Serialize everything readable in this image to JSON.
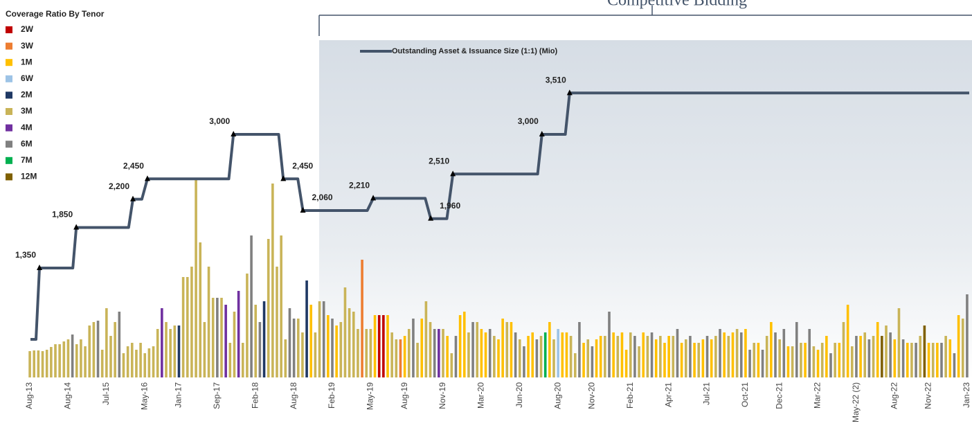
{
  "chart_data": {
    "type": "bar",
    "annotation": "Competitive Bidding",
    "legend_title": "Coverage Ratio By Tenor",
    "legend": [
      {
        "name": "2W",
        "color": "#c00000"
      },
      {
        "name": "3W",
        "color": "#ed7d31"
      },
      {
        "name": "1M",
        "color": "#ffc000"
      },
      {
        "name": "6W",
        "color": "#9dc3e6"
      },
      {
        "name": "2M",
        "color": "#1f3864"
      },
      {
        "name": "3M",
        "color": "#c9b458"
      },
      {
        "name": "4M",
        "color": "#7030a0"
      },
      {
        "name": "6M",
        "color": "#808080"
      },
      {
        "name": "7M",
        "color": "#00b050"
      },
      {
        "name": "12M",
        "color": "#7f6000"
      }
    ],
    "xlim": [
      -0.5,
      220.5
    ],
    "xticks": [
      {
        "value": 0,
        "label": "Aug-13"
      },
      {
        "value": 9,
        "label": "Aug-14"
      },
      {
        "value": 18,
        "label": "Jul-15"
      },
      {
        "value": 27,
        "label": "May-16"
      },
      {
        "value": 35,
        "label": "Jan-17"
      },
      {
        "value": 44,
        "label": "Sep-17"
      },
      {
        "value": 53,
        "label": "Feb-18"
      },
      {
        "value": 62,
        "label": "Aug-18"
      },
      {
        "value": 71,
        "label": "Feb-19"
      },
      {
        "value": 80,
        "label": "May-19"
      },
      {
        "value": 88,
        "label": "Aug-19"
      },
      {
        "value": 97,
        "label": "Nov-19"
      },
      {
        "value": 106,
        "label": "Mar-20"
      },
      {
        "value": 115,
        "label": "Jun-20"
      },
      {
        "value": 124,
        "label": "Aug-20"
      },
      {
        "value": 132,
        "label": "Nov-20"
      },
      {
        "value": 141,
        "label": "Feb-21"
      },
      {
        "value": 150,
        "label": "Apr-21"
      },
      {
        "value": 159,
        "label": "Jul-21"
      },
      {
        "value": 168,
        "label": "Oct-21"
      },
      {
        "value": 176,
        "label": "Dec-21"
      },
      {
        "value": 185,
        "label": "Mar-22"
      },
      {
        "value": 194,
        "label": "May-22 (2)"
      },
      {
        "value": 203,
        "label": "Aug-22"
      },
      {
        "value": 211,
        "label": "Nov-22"
      },
      {
        "value": 220,
        "label": "Jan-23"
      }
    ],
    "ylim": [
      0,
      6
    ],
    "tenors": [
      "3M",
      "3M",
      "3M",
      "3M",
      "3M",
      "3M",
      "3M",
      "3M",
      "3M",
      "3M",
      "6M",
      "3M",
      "3M",
      "3M",
      "3M",
      "3M",
      "6M",
      "3M",
      "3M",
      "3M",
      "3M",
      "6M",
      "3M",
      "3M",
      "3M",
      "3M",
      "3M",
      "3M",
      "3M",
      "3M",
      "3M",
      "4M",
      "3M",
      "3M",
      "3M",
      "2M",
      "3M",
      "3M",
      "3M",
      "3M",
      "3M",
      "3M",
      "3M",
      "3M",
      "6M",
      "3M",
      "4M",
      "3M",
      "3M",
      "4M",
      "3M",
      "3M",
      "6M",
      "3M",
      "6M",
      "2M",
      "3M",
      "3M",
      "3M",
      "3M",
      "3M",
      "6M",
      "6M",
      "3M",
      "3M",
      "2M",
      "1M",
      "3M",
      "3M",
      "6M",
      "1M",
      "6M",
      "1M",
      "3M",
      "3M",
      "3M",
      "3M",
      "3M",
      "3W",
      "3M",
      "3M",
      "1M",
      "2W",
      "2W",
      "1M",
      "3M",
      "3M",
      "3W",
      "1M",
      "3M",
      "6M",
      "3M",
      "1M",
      "3M",
      "3M",
      "6M",
      "4M",
      "3M",
      "1M",
      "3M",
      "6M",
      "1M",
      "1M",
      "3M",
      "6M",
      "3M",
      "1M",
      "1M",
      "6M",
      "3M",
      "1M",
      "1M",
      "3M",
      "1M",
      "6M",
      "3M",
      "6M",
      "1M",
      "1M",
      "6M",
      "3M",
      "7M",
      "1M",
      "3M",
      "6W",
      "1M",
      "1M",
      "3M",
      "3M",
      "6M",
      "1M",
      "3M",
      "6M",
      "1M",
      "1M",
      "3M",
      "6M",
      "1M",
      "3M",
      "1M",
      "1M",
      "3M",
      "6M",
      "3M",
      "1M",
      "3M",
      "6M",
      "1M",
      "3M",
      "1M",
      "1M",
      "3M",
      "6M",
      "1M",
      "3M",
      "6M",
      "1M",
      "3M",
      "1M",
      "6M",
      "1M",
      "3M",
      "6M",
      "1M",
      "3M",
      "1M",
      "3M",
      "6M",
      "1M",
      "6M",
      "3M",
      "1M",
      "6M",
      "3M",
      "1M",
      "6M",
      "3M",
      "6M",
      "1M",
      "3M",
      "6M",
      "3M",
      "1M",
      "6M",
      "3M",
      "1M",
      "3M",
      "1M",
      "6M",
      "3M",
      "1M",
      "3M",
      "1M",
      "3M",
      "6M",
      "1M",
      "3M",
      "6M",
      "3M",
      "1M",
      "12M",
      "3M",
      "6M",
      "1M",
      "3M",
      "6M",
      "1M",
      "3M",
      "6M",
      "3M",
      "12M",
      "1M",
      "3M",
      "1M",
      "6M",
      "3M",
      "1M",
      "6M",
      "1M",
      "3M",
      "6M"
    ],
    "values": [
      0.76,
      0.78,
      0.78,
      0.76,
      0.8,
      0.88,
      0.96,
      0.96,
      1.04,
      1.1,
      1.24,
      0.96,
      1.1,
      0.9,
      1.5,
      1.6,
      1.64,
      0.8,
      2.0,
      1.2,
      1.6,
      1.9,
      0.7,
      0.9,
      1.0,
      0.8,
      1.0,
      0.7,
      0.84,
      0.9,
      1.4,
      2.0,
      1.6,
      1.4,
      1.5,
      1.5,
      2.9,
      2.9,
      3.2,
      5.7,
      3.9,
      1.6,
      3.2,
      2.3,
      2.3,
      2.3,
      2.1,
      1.0,
      1.9,
      2.5,
      1.0,
      3.0,
      4.1,
      2.1,
      1.6,
      2.2,
      4.0,
      5.6,
      3.2,
      4.1,
      1.1,
      2.0,
      1.7,
      1.7,
      1.3,
      2.8,
      2.1,
      1.3,
      2.2,
      2.2,
      1.8,
      1.7,
      1.5,
      1.6,
      2.6,
      2.0,
      1.9,
      1.4,
      3.4,
      1.4,
      1.4,
      1.8,
      1.8,
      1.8,
      1.8,
      1.3,
      1.1,
      1.1,
      1.2,
      1.4,
      1.7,
      1.0,
      1.7,
      2.2,
      1.6,
      1.4,
      1.4,
      1.4,
      1.2,
      0.7,
      1.2,
      1.8,
      1.9,
      1.3,
      1.6,
      1.6,
      1.4,
      1.3,
      1.4,
      1.2,
      1.1,
      1.7,
      1.6,
      1.6,
      1.3,
      1.1,
      0.9,
      1.2,
      1.3,
      1.1,
      1.2,
      1.3,
      1.6,
      1.1,
      1.4,
      1.3,
      1.3,
      1.2,
      0.7,
      1.6,
      1.0,
      1.1,
      0.9,
      1.1,
      1.2,
      1.2,
      1.9,
      1.3,
      1.2,
      1.3,
      0.8,
      1.3,
      1.2,
      0.9,
      1.3,
      1.2,
      1.3,
      1.1,
      1.2,
      1.0,
      1.2,
      1.2,
      1.4,
      1.0,
      1.1,
      1.2,
      1.0,
      1.0,
      1.1,
      1.2,
      1.1,
      1.2,
      1.4,
      1.3,
      1.2,
      1.3,
      1.4,
      1.3,
      1.4,
      0.8,
      1.0,
      1.0,
      0.8,
      1.2,
      1.6,
      1.3,
      1.1,
      1.4,
      0.9,
      0.9,
      1.6,
      1.0,
      1.0,
      1.4,
      0.9,
      0.8,
      1.0,
      1.2,
      0.7,
      1.0,
      1.0,
      1.6,
      2.1,
      0.9,
      1.2,
      1.2,
      1.3,
      1.1,
      1.2,
      1.6,
      1.2,
      1.5,
      1.3,
      1.1,
      2.0,
      1.1,
      1.0,
      1.0,
      1.0,
      1.2,
      1.5,
      1.0,
      1.0,
      1.0,
      1.0,
      1.2,
      1.1,
      0.7,
      1.8,
      1.7,
      2.4
    ],
    "line": {
      "name": "Outstanding Asset & Issuance Size (1:1) (Mio)",
      "color": "#44546a",
      "y2lim": [
        0,
        4000
      ],
      "x": [
        0.15,
        1.45,
        2.26,
        10.1,
        10.9,
        23.2,
        24.2,
        26.3,
        27.6,
        46.7,
        47.8,
        58.4,
        59.5,
        62.9,
        64.1,
        79.2,
        80.6,
        92.8,
        94.1,
        97.9,
        99.3,
        119.2,
        120.2,
        125.7,
        126.7,
        220.5
      ],
      "values": [
        470,
        470,
        1350,
        1350,
        1850,
        1850,
        2200,
        2200,
        2450,
        2450,
        3000,
        3000,
        2450,
        2450,
        2060,
        2060,
        2210,
        2210,
        1960,
        1960,
        2510,
        2510,
        3000,
        3000,
        3510,
        3510
      ],
      "value_labels": [
        null,
        null,
        "1,350",
        null,
        "1,850",
        null,
        "2,200",
        null,
        "2,450",
        null,
        "3,000",
        null,
        "2,450",
        null,
        "2,060",
        null,
        "2,210",
        null,
        "1,960",
        null,
        "2,510",
        null,
        "3,000",
        null,
        "3,510",
        null
      ]
    }
  }
}
